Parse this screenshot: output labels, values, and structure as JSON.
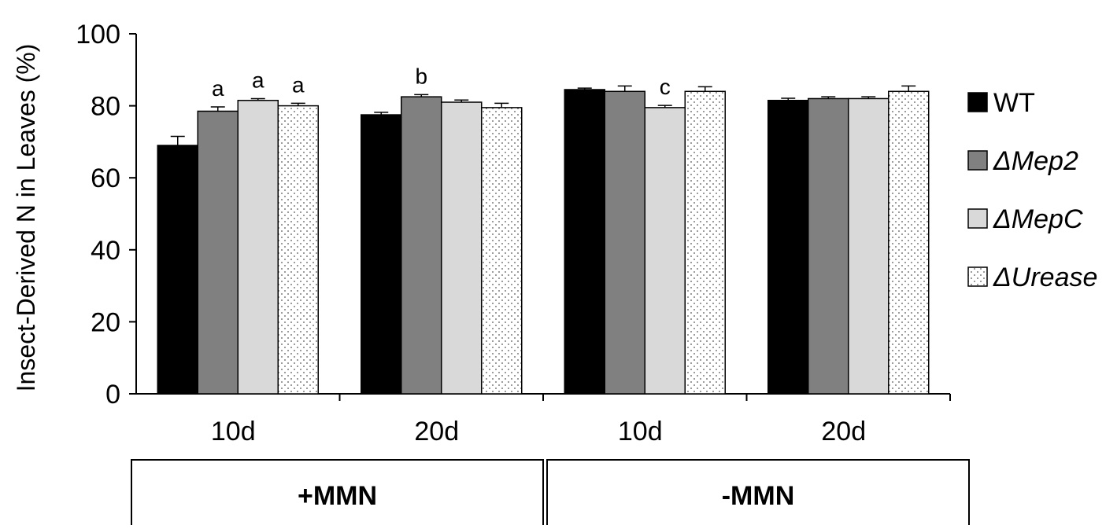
{
  "chart_data": {
    "type": "bar",
    "ylabel": "Insect-Derived N in Leaves (%)",
    "ylim": [
      0,
      100
    ],
    "yticks": [
      0,
      20,
      40,
      60,
      80,
      100
    ],
    "categories": [
      "10d",
      "20d",
      "10d",
      "20d"
    ],
    "groups": [
      {
        "label": "+MMN",
        "span": [
          0,
          1
        ]
      },
      {
        "label": "-MMN",
        "span": [
          2,
          3
        ]
      }
    ],
    "series": [
      {
        "name": "WT",
        "values": [
          69,
          77.5,
          84.5,
          81.5
        ],
        "errors": [
          2.5,
          0.7,
          0.4,
          0.6
        ],
        "color": "#000000",
        "pattern": "solid"
      },
      {
        "name": "ΔMep2",
        "values": [
          78.5,
          82.5,
          84,
          82
        ],
        "errors": [
          1.2,
          0.6,
          1.5,
          0.5
        ],
        "color": "#808080",
        "pattern": "solid"
      },
      {
        "name": "ΔMepC",
        "values": [
          81.5,
          81,
          79.5,
          82
        ],
        "errors": [
          0.5,
          0.6,
          0.6,
          0.5
        ],
        "color": "#d9d9d9",
        "pattern": "solid"
      },
      {
        "name": "ΔUrease",
        "values": [
          80,
          79.5,
          84,
          84
        ],
        "errors": [
          0.7,
          1.2,
          1.3,
          1.5
        ],
        "color": "#ffffff",
        "pattern": "dots"
      }
    ],
    "annotations": [
      {
        "category": 0,
        "series": 1,
        "text": "a"
      },
      {
        "category": 0,
        "series": 2,
        "text": "a"
      },
      {
        "category": 0,
        "series": 3,
        "text": "a"
      },
      {
        "category": 1,
        "series": 1,
        "text": "b"
      },
      {
        "category": 2,
        "series": 2,
        "text": "c"
      }
    ],
    "legend_position": "right",
    "grid": false
  }
}
